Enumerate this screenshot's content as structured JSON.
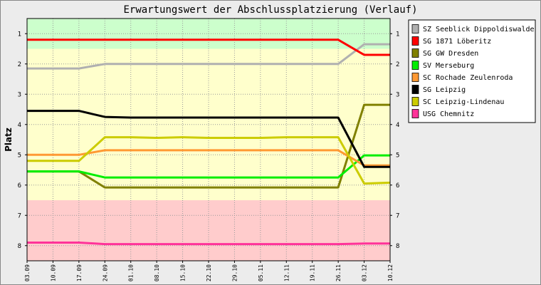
{
  "chart_data": {
    "type": "line",
    "title": "Erwartungswert der Abschlussplatzierung (Verlauf)",
    "xlabel": "",
    "ylabel": "Platz",
    "categories": [
      "03.09",
      "10.09",
      "17.09",
      "24.09",
      "01.10",
      "08.10",
      "15.10",
      "22.10",
      "29.10",
      "05.11",
      "12.11",
      "19.11",
      "26.11",
      "03.12",
      "10.12"
    ],
    "ylim": [
      0.5,
      8.5
    ],
    "y_reversed": true,
    "yticks": [
      1,
      2,
      3,
      4,
      5,
      6,
      7,
      8
    ],
    "zones": [
      {
        "from": 0.5,
        "to": 1.5,
        "color": "#ccffcc"
      },
      {
        "from": 1.5,
        "to": 6.5,
        "color": "#ffffcc"
      },
      {
        "from": 6.5,
        "to": 8.5,
        "color": "#ffcccc"
      }
    ],
    "legend_position": "right",
    "series": [
      {
        "name": "SZ Seeblick Dippoldiswalde",
        "color": "#b0b0b0",
        "values": [
          2.15,
          2.15,
          2.15,
          2.0,
          2.0,
          2.0,
          2.0,
          2.0,
          2.0,
          2.0,
          2.0,
          2.0,
          2.0,
          1.35,
          1.35
        ]
      },
      {
        "name": "SG 1871 Löberitz",
        "color": "#ff0000",
        "values": [
          1.2,
          1.2,
          1.2,
          1.2,
          1.2,
          1.2,
          1.2,
          1.2,
          1.2,
          1.2,
          1.2,
          1.2,
          1.2,
          1.7,
          1.7
        ]
      },
      {
        "name": "SG GW Dresden",
        "color": "#808000",
        "values": [
          5.55,
          5.55,
          5.55,
          6.08,
          6.08,
          6.08,
          6.08,
          6.08,
          6.08,
          6.08,
          6.08,
          6.08,
          6.08,
          3.35,
          3.35
        ]
      },
      {
        "name": "SV Merseburg",
        "color": "#00ee00",
        "values": [
          5.55,
          5.55,
          5.55,
          5.75,
          5.75,
          5.75,
          5.75,
          5.75,
          5.75,
          5.75,
          5.75,
          5.75,
          5.75,
          5.02,
          5.02
        ]
      },
      {
        "name": "SC Rochade Zeulenroda",
        "color": "#ff9933",
        "values": [
          5.0,
          5.0,
          5.0,
          4.85,
          4.85,
          4.85,
          4.85,
          4.85,
          4.85,
          4.85,
          4.85,
          4.85,
          4.85,
          5.35,
          5.35
        ]
      },
      {
        "name": "SG Leipzig",
        "color": "#000000",
        "values": [
          3.55,
          3.55,
          3.55,
          3.75,
          3.77,
          3.77,
          3.77,
          3.77,
          3.77,
          3.77,
          3.77,
          3.77,
          3.77,
          5.4,
          5.4
        ]
      },
      {
        "name": "SC Leipzig-Lindenau",
        "color": "#cccc00",
        "values": [
          5.2,
          5.2,
          5.2,
          4.42,
          4.42,
          4.44,
          4.42,
          4.44,
          4.44,
          4.44,
          4.42,
          4.42,
          4.42,
          5.95,
          5.92
        ]
      },
      {
        "name": "USG Chemnitz",
        "color": "#ff3399",
        "values": [
          7.9,
          7.9,
          7.9,
          7.95,
          7.95,
          7.95,
          7.95,
          7.95,
          7.95,
          7.95,
          7.95,
          7.95,
          7.95,
          7.93,
          7.93
        ]
      }
    ]
  }
}
